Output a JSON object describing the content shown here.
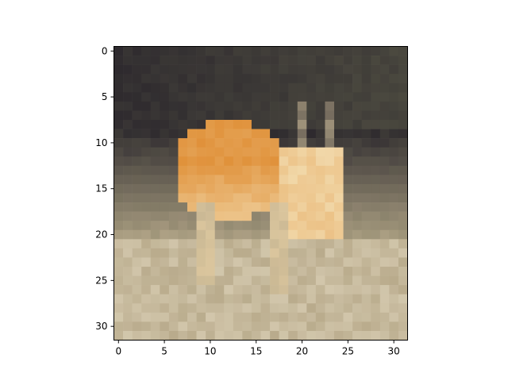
{
  "chart_data": {
    "type": "heatmap",
    "title": "",
    "xlabel": "",
    "ylabel": "",
    "xlim": [
      -0.5,
      31.5
    ],
    "ylim": [
      31.5,
      -0.5
    ],
    "grid": false,
    "x_ticks": [
      {
        "value": 0,
        "label": "0"
      },
      {
        "value": 5,
        "label": "5"
      },
      {
        "value": 10,
        "label": "10"
      },
      {
        "value": 15,
        "label": "15"
      },
      {
        "value": 20,
        "label": "20"
      },
      {
        "value": 25,
        "label": "25"
      },
      {
        "value": 30,
        "label": "30"
      }
    ],
    "y_ticks": [
      {
        "value": 0,
        "label": "0"
      },
      {
        "value": 5,
        "label": "5"
      },
      {
        "value": 10,
        "label": "10"
      },
      {
        "value": 15,
        "label": "15"
      },
      {
        "value": 20,
        "label": "20"
      },
      {
        "value": 25,
        "label": "25"
      },
      {
        "value": 30,
        "label": "30"
      }
    ],
    "image_size": [
      32,
      32
    ],
    "colors": {
      "dark_background": "#2e2a2e",
      "deer_orange": "#e0913a",
      "deer_light": "#f1d7a8",
      "grass": "#b9ab8c",
      "grass_light": "#d8cdb3",
      "foliage_green": "#6b6b52"
    },
    "subject_icon": "deer-in-grass-photo"
  }
}
